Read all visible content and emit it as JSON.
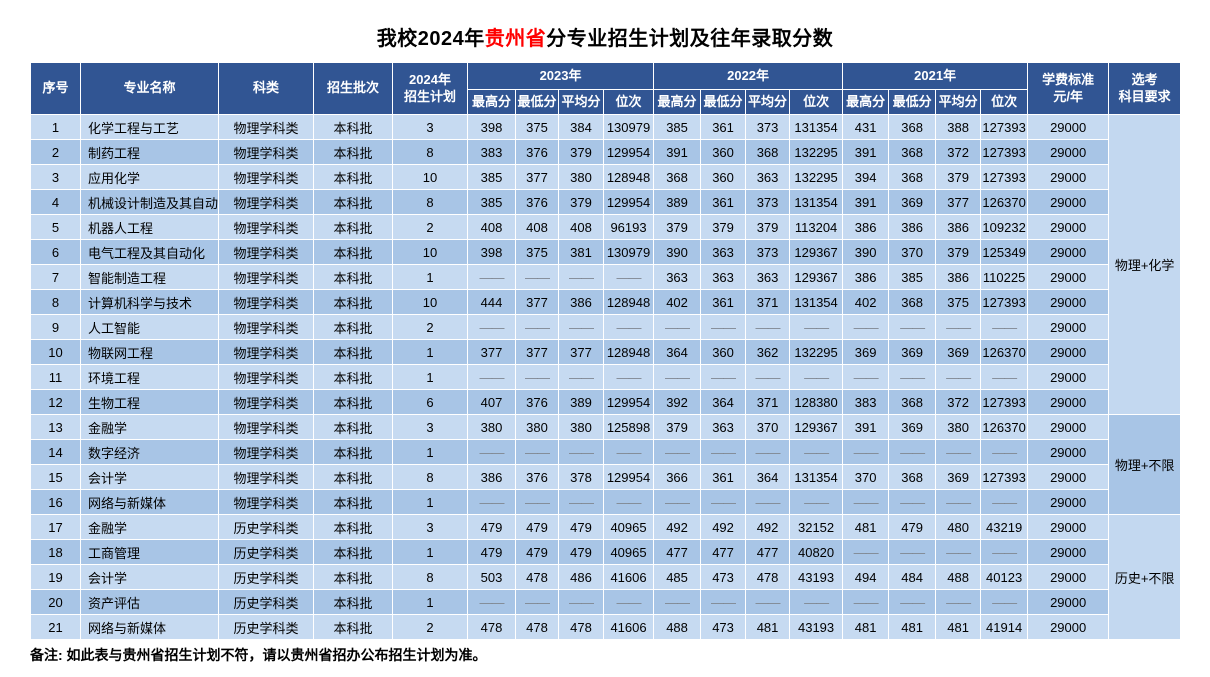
{
  "title": {
    "prefix": "我校2024年",
    "highlight": "贵州省",
    "suffix": "分专业招生计划及往年录取分数",
    "highlight_color": "#ff0000"
  },
  "note": "备注: 如此表与贵州省招生计划不符，请以贵州省招办公布招生计划为准。",
  "colors": {
    "header_bg": "#315593",
    "row_light": "#C6DAF1",
    "row_medium": "#A8C5E6",
    "header_text": "#ffffff",
    "dash_gray": "#7f8690",
    "title_highlight": "#ff0000"
  },
  "table": {
    "dash": "——",
    "headers": {
      "no": "序号",
      "major": "专业名称",
      "category": "科类",
      "batch": "招生批次",
      "plan2024": "2024年\n招生计划",
      "year_2023": "2023年",
      "year_2022": "2022年",
      "year_2021": "2021年",
      "score_cols": [
        "最高分",
        "最低分",
        "平均分",
        "位次"
      ],
      "tuition": "学费标准\n元/年",
      "subject_req": "选考\n科目要求"
    },
    "subject_groups": [
      {
        "label": "物理+化学",
        "start_index": 0,
        "row_span": 12,
        "shade": "light"
      },
      {
        "label": "物理+不限",
        "start_index": 12,
        "row_span": 4,
        "shade": "medium"
      },
      {
        "label": "历史+不限",
        "start_index": 16,
        "row_span": 5,
        "shade": "light"
      }
    ],
    "rows": [
      {
        "no": "1",
        "major": "化学工程与工艺",
        "category": "物理学科类",
        "batch": "本科批",
        "plan": "3",
        "y2023": [
          "398",
          "375",
          "384",
          "130979"
        ],
        "y2022": [
          "385",
          "361",
          "373",
          "131354"
        ],
        "y2021": [
          "431",
          "368",
          "388",
          "127393"
        ],
        "tuition": "29000"
      },
      {
        "no": "2",
        "major": "制药工程",
        "category": "物理学科类",
        "batch": "本科批",
        "plan": "8",
        "y2023": [
          "383",
          "376",
          "379",
          "129954"
        ],
        "y2022": [
          "391",
          "360",
          "368",
          "132295"
        ],
        "y2021": [
          "391",
          "368",
          "372",
          "127393"
        ],
        "tuition": "29000"
      },
      {
        "no": "3",
        "major": "应用化学",
        "category": "物理学科类",
        "batch": "本科批",
        "plan": "10",
        "y2023": [
          "385",
          "377",
          "380",
          "128948"
        ],
        "y2022": [
          "368",
          "360",
          "363",
          "132295"
        ],
        "y2021": [
          "394",
          "368",
          "379",
          "127393"
        ],
        "tuition": "29000"
      },
      {
        "no": "4",
        "major": "机械设计制造及其自动化",
        "category": "物理学科类",
        "batch": "本科批",
        "plan": "8",
        "y2023": [
          "385",
          "376",
          "379",
          "129954"
        ],
        "y2022": [
          "389",
          "361",
          "373",
          "131354"
        ],
        "y2021": [
          "391",
          "369",
          "377",
          "126370"
        ],
        "tuition": "29000"
      },
      {
        "no": "5",
        "major": "机器人工程",
        "category": "物理学科类",
        "batch": "本科批",
        "plan": "2",
        "y2023": [
          "408",
          "408",
          "408",
          "96193"
        ],
        "y2022": [
          "379",
          "379",
          "379",
          "113204"
        ],
        "y2021": [
          "386",
          "386",
          "386",
          "109232"
        ],
        "tuition": "29000"
      },
      {
        "no": "6",
        "major": "电气工程及其自动化",
        "category": "物理学科类",
        "batch": "本科批",
        "plan": "10",
        "y2023": [
          "398",
          "375",
          "381",
          "130979"
        ],
        "y2022": [
          "390",
          "363",
          "373",
          "129367"
        ],
        "y2021": [
          "390",
          "370",
          "379",
          "125349"
        ],
        "tuition": "29000"
      },
      {
        "no": "7",
        "major": "智能制造工程",
        "category": "物理学科类",
        "batch": "本科批",
        "plan": "1",
        "y2023": [
          "——",
          "——",
          "——",
          "——"
        ],
        "y2022": [
          "363",
          "363",
          "363",
          "129367"
        ],
        "y2021": [
          "386",
          "385",
          "386",
          "110225"
        ],
        "tuition": "29000"
      },
      {
        "no": "8",
        "major": "计算机科学与技术",
        "category": "物理学科类",
        "batch": "本科批",
        "plan": "10",
        "y2023": [
          "444",
          "377",
          "386",
          "128948"
        ],
        "y2022": [
          "402",
          "361",
          "371",
          "131354"
        ],
        "y2021": [
          "402",
          "368",
          "375",
          "127393"
        ],
        "tuition": "29000"
      },
      {
        "no": "9",
        "major": "人工智能",
        "category": "物理学科类",
        "batch": "本科批",
        "plan": "2",
        "y2023": [
          "——",
          "——",
          "——",
          "——"
        ],
        "y2022": [
          "——",
          "——",
          "——",
          "——"
        ],
        "y2021": [
          "——",
          "——",
          "——",
          "——"
        ],
        "tuition": "29000"
      },
      {
        "no": "10",
        "major": "物联网工程",
        "category": "物理学科类",
        "batch": "本科批",
        "plan": "1",
        "y2023": [
          "377",
          "377",
          "377",
          "128948"
        ],
        "y2022": [
          "364",
          "360",
          "362",
          "132295"
        ],
        "y2021": [
          "369",
          "369",
          "369",
          "126370"
        ],
        "tuition": "29000"
      },
      {
        "no": "11",
        "major": "环境工程",
        "category": "物理学科类",
        "batch": "本科批",
        "plan": "1",
        "y2023": [
          "——",
          "——",
          "——",
          "——"
        ],
        "y2022": [
          "——",
          "——",
          "——",
          "——"
        ],
        "y2021": [
          "——",
          "——",
          "——",
          "——"
        ],
        "tuition": "29000"
      },
      {
        "no": "12",
        "major": "生物工程",
        "category": "物理学科类",
        "batch": "本科批",
        "plan": "6",
        "y2023": [
          "407",
          "376",
          "389",
          "129954"
        ],
        "y2022": [
          "392",
          "364",
          "371",
          "128380"
        ],
        "y2021": [
          "383",
          "368",
          "372",
          "127393"
        ],
        "tuition": "29000"
      },
      {
        "no": "13",
        "major": "金融学",
        "category": "物理学科类",
        "batch": "本科批",
        "plan": "3",
        "y2023": [
          "380",
          "380",
          "380",
          "125898"
        ],
        "y2022": [
          "379",
          "363",
          "370",
          "129367"
        ],
        "y2021": [
          "391",
          "369",
          "380",
          "126370"
        ],
        "tuition": "29000"
      },
      {
        "no": "14",
        "major": "数字经济",
        "category": "物理学科类",
        "batch": "本科批",
        "plan": "1",
        "y2023": [
          "——",
          "——",
          "——",
          "——"
        ],
        "y2022": [
          "——",
          "——",
          "——",
          "——"
        ],
        "y2021": [
          "——",
          "——",
          "——",
          "——"
        ],
        "tuition": "29000"
      },
      {
        "no": "15",
        "major": "会计学",
        "category": "物理学科类",
        "batch": "本科批",
        "plan": "8",
        "y2023": [
          "386",
          "376",
          "378",
          "129954"
        ],
        "y2022": [
          "366",
          "361",
          "364",
          "131354"
        ],
        "y2021": [
          "370",
          "368",
          "369",
          "127393"
        ],
        "tuition": "29000"
      },
      {
        "no": "16",
        "major": "网络与新媒体",
        "category": "物理学科类",
        "batch": "本科批",
        "plan": "1",
        "y2023": [
          "——",
          "——",
          "——",
          "——"
        ],
        "y2022": [
          "——",
          "——",
          "——",
          "——"
        ],
        "y2021": [
          "——",
          "——",
          "——",
          "——"
        ],
        "tuition": "29000"
      },
      {
        "no": "17",
        "major": "金融学",
        "category": "历史学科类",
        "batch": "本科批",
        "plan": "3",
        "y2023": [
          "479",
          "479",
          "479",
          "40965"
        ],
        "y2022": [
          "492",
          "492",
          "492",
          "32152"
        ],
        "y2021": [
          "481",
          "479",
          "480",
          "43219"
        ],
        "tuition": "29000"
      },
      {
        "no": "18",
        "major": "工商管理",
        "category": "历史学科类",
        "batch": "本科批",
        "plan": "1",
        "y2023": [
          "479",
          "479",
          "479",
          "40965"
        ],
        "y2022": [
          "477",
          "477",
          "477",
          "40820"
        ],
        "y2021": [
          "——",
          "——",
          "——",
          "——"
        ],
        "tuition": "29000"
      },
      {
        "no": "19",
        "major": "会计学",
        "category": "历史学科类",
        "batch": "本科批",
        "plan": "8",
        "y2023": [
          "503",
          "478",
          "486",
          "41606"
        ],
        "y2022": [
          "485",
          "473",
          "478",
          "43193"
        ],
        "y2021": [
          "494",
          "484",
          "488",
          "40123"
        ],
        "tuition": "29000"
      },
      {
        "no": "20",
        "major": "资产评估",
        "category": "历史学科类",
        "batch": "本科批",
        "plan": "1",
        "y2023": [
          "——",
          "——",
          "——",
          "——"
        ],
        "y2022": [
          "——",
          "——",
          "——",
          "——"
        ],
        "y2021": [
          "——",
          "——",
          "——",
          "——"
        ],
        "tuition": "29000"
      },
      {
        "no": "21",
        "major": "网络与新媒体",
        "category": "历史学科类",
        "batch": "本科批",
        "plan": "2",
        "y2023": [
          "478",
          "478",
          "478",
          "41606"
        ],
        "y2022": [
          "488",
          "473",
          "481",
          "43193"
        ],
        "y2021": [
          "481",
          "481",
          "481",
          "41914"
        ],
        "tuition": "29000"
      }
    ]
  }
}
